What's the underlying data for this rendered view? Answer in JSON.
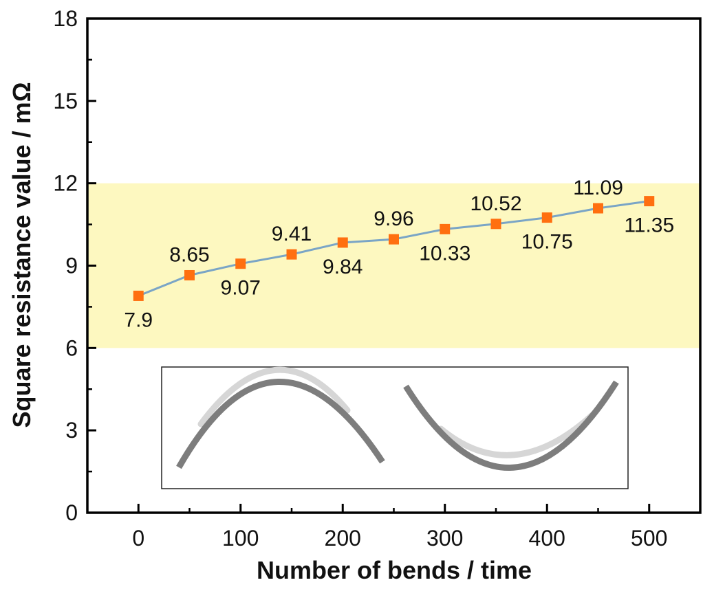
{
  "chart_data": {
    "type": "line",
    "xlabel": "Number of bends / time",
    "ylabel": "Square resistance value / mΩ",
    "xlim": [
      -50,
      550
    ],
    "ylim": [
      0,
      18
    ],
    "x_ticks": [
      0,
      100,
      200,
      300,
      400,
      500
    ],
    "y_ticks": [
      0,
      3,
      6,
      9,
      12,
      15,
      18
    ],
    "highlight_band": {
      "y_from": 6,
      "y_to": 12,
      "color": "#fdf8c0"
    },
    "series": [
      {
        "name": "Square resistance",
        "marker": "square",
        "marker_color": "#ff6f10",
        "line_color": "#7aa5c6",
        "x": [
          0,
          50,
          100,
          150,
          200,
          250,
          300,
          350,
          400,
          450,
          500
        ],
        "values": [
          7.9,
          8.65,
          9.07,
          9.41,
          9.84,
          9.96,
          10.33,
          10.52,
          10.75,
          11.09,
          11.35
        ],
        "labels": [
          "7.9",
          "8.65",
          "9.07",
          "9.41",
          "9.84",
          "9.96",
          "10.33",
          "10.52",
          "10.75",
          "11.09",
          "11.35"
        ],
        "label_positions": [
          "below",
          "above",
          "below",
          "above",
          "below",
          "above",
          "below",
          "above",
          "below",
          "above",
          "below"
        ]
      }
    ],
    "inset": "bending illustration: a strip bent convex and a strip bent concave"
  }
}
